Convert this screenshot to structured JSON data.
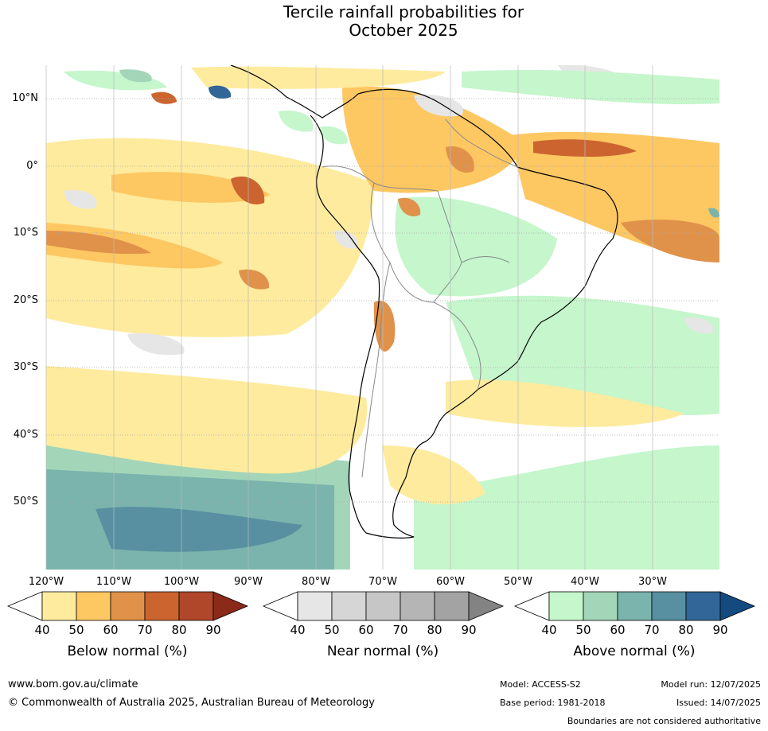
{
  "title_line1": "Tercile rainfall probabilities for",
  "title_line2": "October 2025",
  "lat_labels": [
    "10°N",
    "0°",
    "10°S",
    "20°S",
    "30°S",
    "40°S",
    "50°S"
  ],
  "lon_labels": [
    "120°W",
    "110°W",
    "100°W",
    "90°W",
    "80°W",
    "70°W",
    "60°W",
    "50°W",
    "40°W",
    "30°W"
  ],
  "colorbars": [
    {
      "label": "Below normal (%)",
      "ticks": [
        "40",
        "50",
        "60",
        "70",
        "80",
        "90"
      ],
      "colors": [
        "#ffffff",
        "#feeb9e",
        "#fdc762",
        "#e0924a",
        "#cc6430",
        "#b0472a",
        "#8c2a1a"
      ]
    },
    {
      "label": "Near normal (%)",
      "ticks": [
        "40",
        "50",
        "60",
        "70",
        "80",
        "90"
      ],
      "colors": [
        "#ffffff",
        "#e6e6e6",
        "#d6d6d6",
        "#c6c6c6",
        "#b5b5b5",
        "#a3a3a3",
        "#838383"
      ]
    },
    {
      "label": "Above normal (%)",
      "ticks": [
        "40",
        "50",
        "60",
        "70",
        "80",
        "90"
      ],
      "colors": [
        "#ffffff",
        "#c5f6cc",
        "#a3d6b8",
        "#7bb3ad",
        "#5890a1",
        "#336698",
        "#134a80"
      ]
    }
  ],
  "footer": {
    "url": "www.bom.gov.au/climate",
    "copyright": "© Commonwealth of Australia 2025, Australian Bureau of Meteorology",
    "model": "Model: ACCESS-S2",
    "base_period": "Base period: 1981-2018",
    "model_run": "Model run: 12/07/2025",
    "issued": "Issued: 14/07/2025",
    "disclaimer": "Boundaries are not considered authoritative"
  }
}
